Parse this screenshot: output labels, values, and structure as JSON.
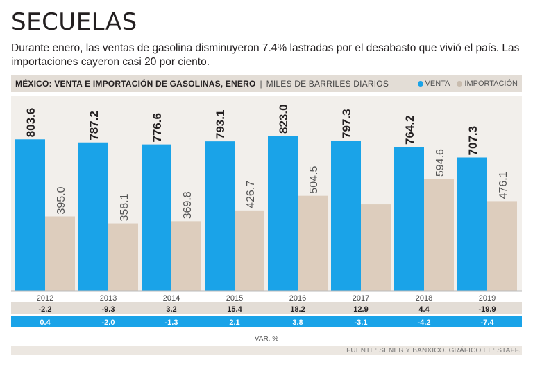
{
  "title": "SECUELAS",
  "subtitle": "Durante enero, las ventas de gasolina disminuyeron 7.4% lastradas por el desabasto que vivió el país. Las importaciones cayeron casi 20 por ciento.",
  "chart_title": "MÉXICO: VENTA E IMPORTACIÓN DE GASOLINAS, ENERO",
  "units": "MILES DE BARRILES DIARIOS",
  "legend": {
    "venta": "VENTA",
    "importacion": "IMPORTACIÓN"
  },
  "colors": {
    "venta": "#1aa3e8",
    "importacion": "#ddcdbd"
  },
  "var_label": "VAR. %",
  "source": "FUENTE: SENER Y BANXICO. GRÁFICO EE: STAFF.",
  "chart_data": {
    "type": "bar",
    "categories": [
      "2012",
      "2013",
      "2014",
      "2015",
      "2016",
      "2017",
      "2018",
      "2019"
    ],
    "series": [
      {
        "name": "VENTA",
        "values": [
          803.6,
          787.2,
          776.6,
          793.1,
          823.0,
          797.3,
          764.2,
          707.3
        ]
      },
      {
        "name": "IMPORTACIÓN",
        "values": [
          395.0,
          358.1,
          369.8,
          426.7,
          504.5,
          null,
          594.6,
          476.1
        ]
      }
    ],
    "importacion_2017_unlabeled_estimate": 459,
    "var_importacion": [
      "-2.2",
      "-9.3",
      "3.2",
      "15.4",
      "18.2",
      "12.9",
      "4.4",
      "-19.9"
    ],
    "var_venta": [
      "0.4",
      "-2.0",
      "-1.3",
      "2.1",
      "3.8",
      "-3.1",
      "-4.2",
      "-7.4"
    ],
    "ylim": [
      0,
      860
    ]
  }
}
